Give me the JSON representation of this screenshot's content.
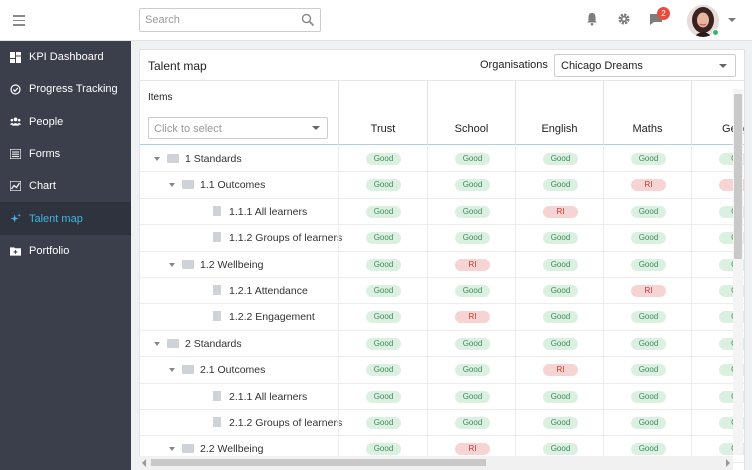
{
  "search": {
    "placeholder": "Search"
  },
  "notifications": {
    "count": "2"
  },
  "sidebar": {
    "items": [
      {
        "label": "KPI Dashboard",
        "icon": "dashboard-icon",
        "active": false
      },
      {
        "label": "Progress Tracking",
        "icon": "progress-icon",
        "active": false
      },
      {
        "label": "People",
        "icon": "people-icon",
        "active": false
      },
      {
        "label": "Forms",
        "icon": "forms-icon",
        "active": false
      },
      {
        "label": "Chart",
        "icon": "chart-icon",
        "active": false
      },
      {
        "label": "Talent map",
        "icon": "sparkle-icon",
        "active": true
      },
      {
        "label": "Portfolio",
        "icon": "folder-add-icon",
        "active": false
      }
    ]
  },
  "panel": {
    "title": "Talent map",
    "org_label": "Organisations",
    "org_value": "Chicago Dreams"
  },
  "grid": {
    "items_label": "Items",
    "items_placeholder": "Click to select",
    "columns": [
      "Trust",
      "School",
      "English",
      "Maths",
      "Geag"
    ],
    "rows": [
      {
        "label": "1 Standards",
        "level": 0,
        "type": "group",
        "values": [
          "Good",
          "Good",
          "Good",
          "Good",
          "Go"
        ]
      },
      {
        "label": "1.1 Outcomes",
        "level": 1,
        "type": "group",
        "values": [
          "Good",
          "Good",
          "Good",
          "RI",
          "R"
        ]
      },
      {
        "label": "1.1.1 All learners",
        "level": 2,
        "type": "leaf",
        "values": [
          "Good",
          "Good",
          "RI",
          "Good",
          "Go"
        ]
      },
      {
        "label": "1.1.2 Groups of learners",
        "level": 2,
        "type": "leaf",
        "values": [
          "Good",
          "Good",
          "Good",
          "Good",
          "Go"
        ]
      },
      {
        "label": "1.2 Wellbeing",
        "level": 1,
        "type": "group",
        "values": [
          "Good",
          "RI",
          "Good",
          "Good",
          "Go"
        ]
      },
      {
        "label": "1.2.1 Attendance",
        "level": 2,
        "type": "leaf",
        "values": [
          "Good",
          "Good",
          "Good",
          "RI",
          "Go"
        ]
      },
      {
        "label": "1.2.2 Engagement",
        "level": 2,
        "type": "leaf",
        "values": [
          "Good",
          "RI",
          "Good",
          "Good",
          "Go"
        ]
      },
      {
        "label": "2 Standards",
        "level": 0,
        "type": "group",
        "values": [
          "Good",
          "Good",
          "Good",
          "Good",
          "Go"
        ]
      },
      {
        "label": "2.1 Outcomes",
        "level": 1,
        "type": "group",
        "values": [
          "Good",
          "Good",
          "RI",
          "Good",
          "Go"
        ]
      },
      {
        "label": "2.1.1 All learners",
        "level": 2,
        "type": "leaf",
        "values": [
          "Good",
          "Good",
          "Good",
          "Good",
          "Go"
        ]
      },
      {
        "label": "2.1.2 Groups of learners",
        "level": 2,
        "type": "leaf",
        "values": [
          "Good",
          "Good",
          "Good",
          "Good",
          "Go"
        ]
      },
      {
        "label": "2.2 Wellbeing",
        "level": 1,
        "type": "group",
        "values": [
          "Good",
          "RI",
          "Good",
          "Good",
          "Go"
        ]
      }
    ]
  },
  "colors": {
    "accent": "#42b4e6",
    "good_bg": "#dcf0e2",
    "good_fg": "#3e8d5a",
    "ri_bg": "#f7d4d4",
    "ri_fg": "#c0392b",
    "sidebar_bg": "#3a3f4b"
  }
}
